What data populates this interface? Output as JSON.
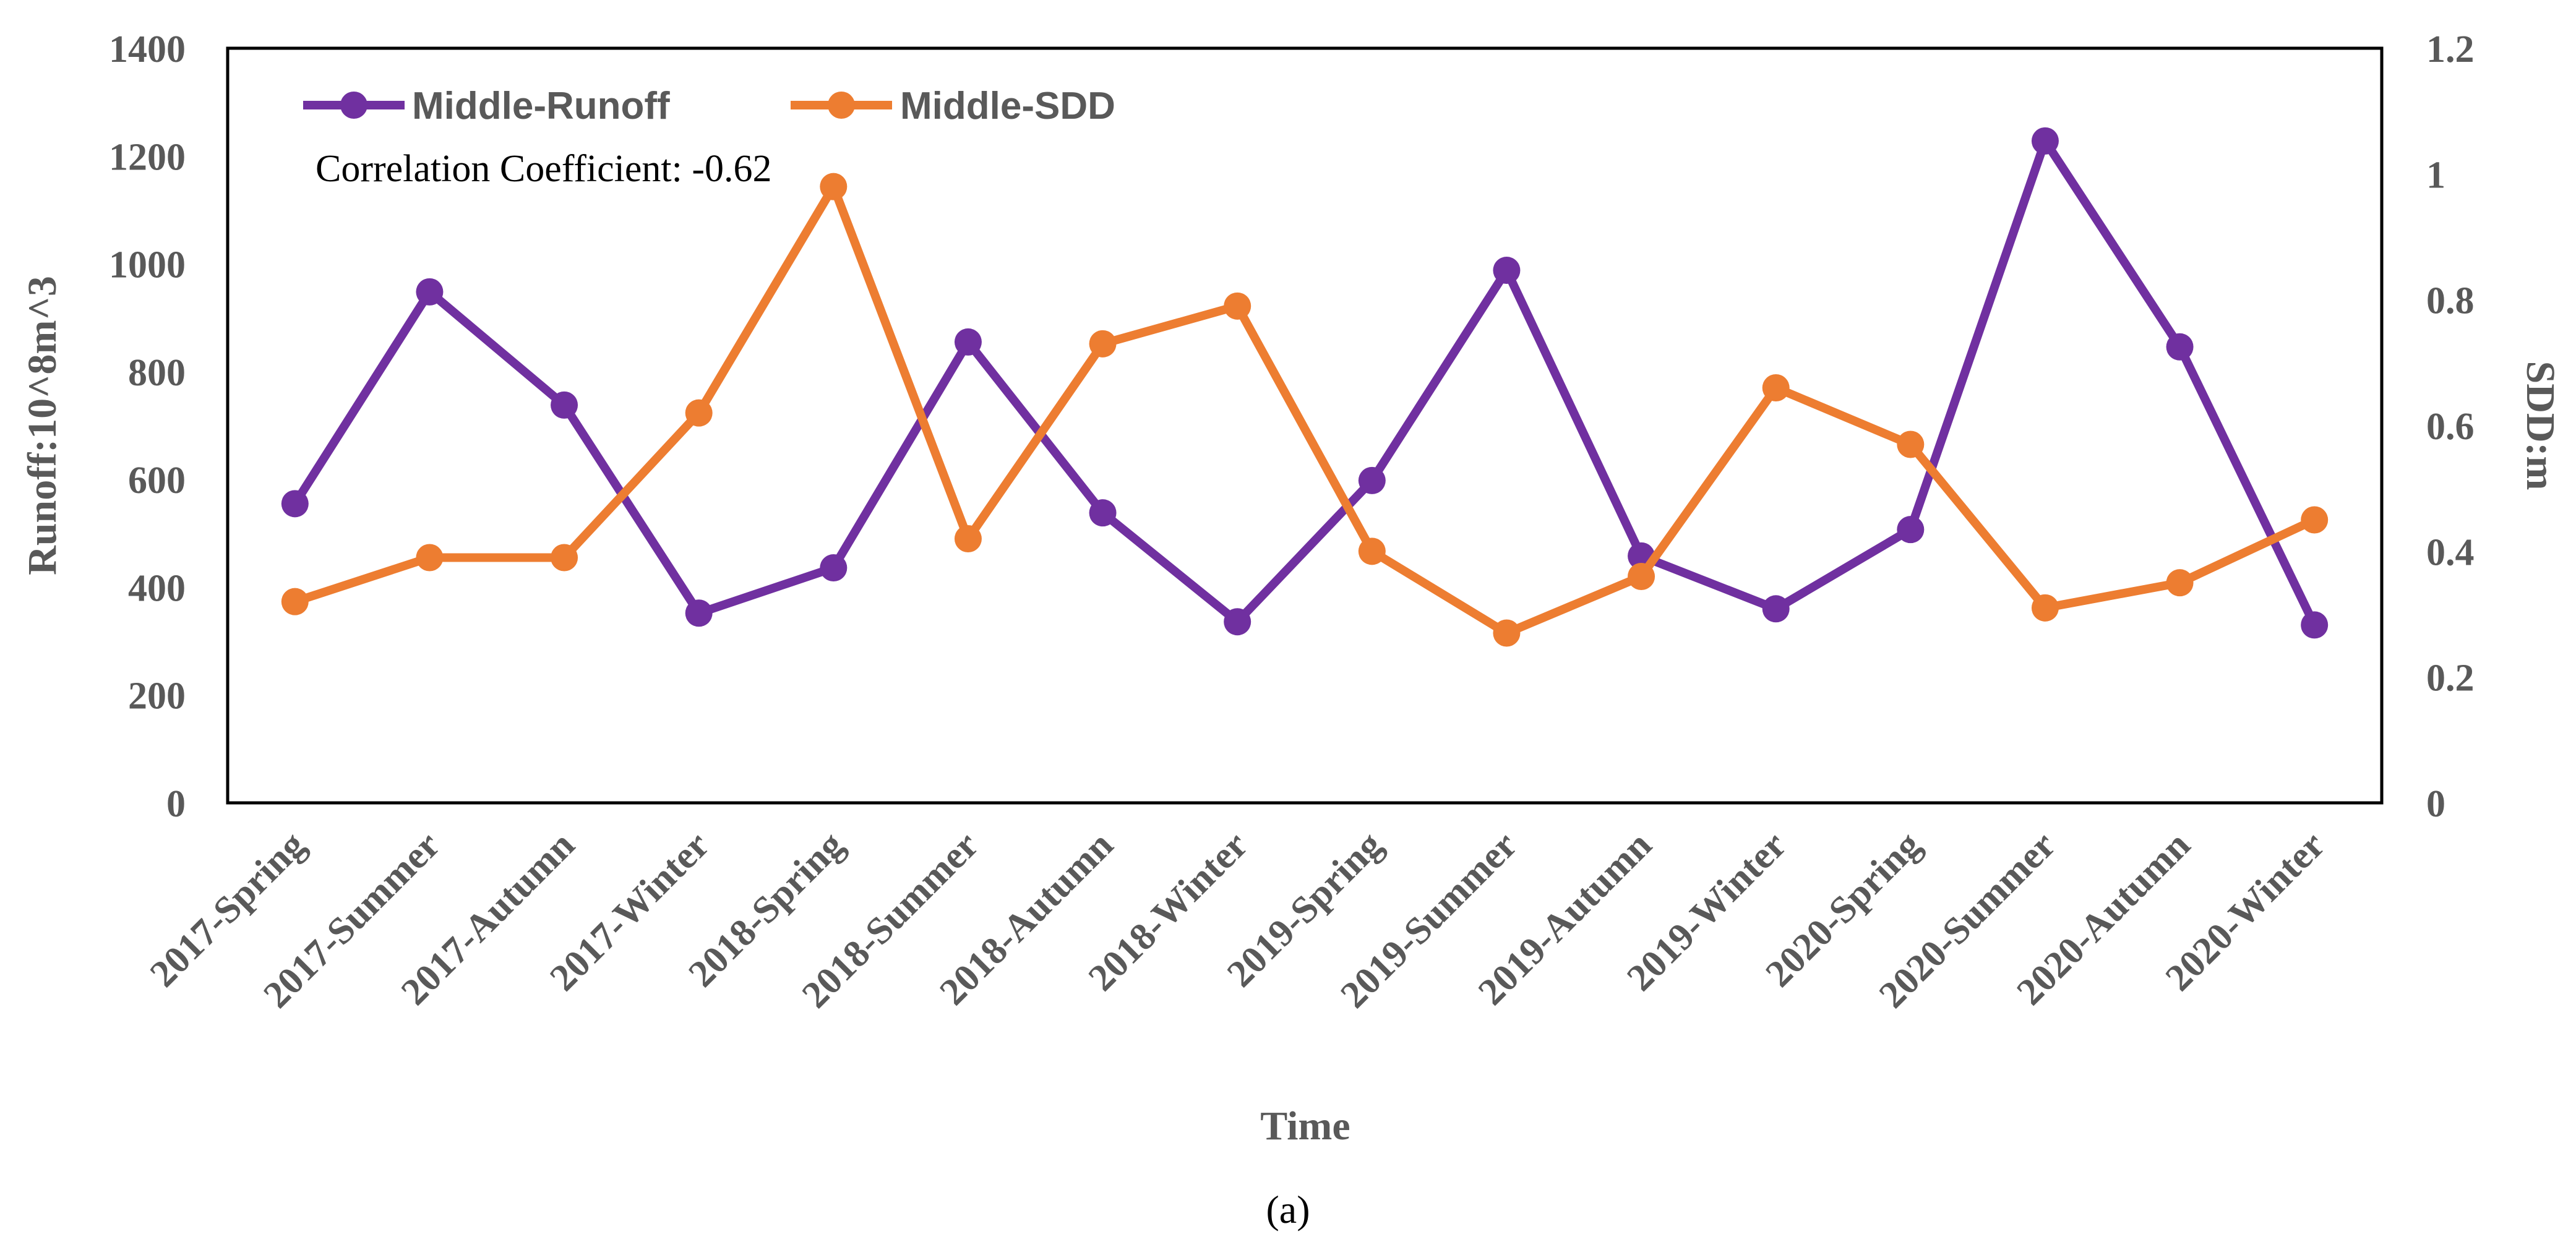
{
  "chart_data": {
    "type": "line",
    "categories": [
      "2017-Spring",
      "2017-Summer",
      "2017-Autumn",
      "2017-Winter",
      "2018-Spring",
      "2018-Summer",
      "2018-Autumn",
      "2018-Winter",
      "2019-Spring",
      "2019-Summer",
      "2019-Autumn",
      "2019-Winter",
      "2020-Spring",
      "2020-Summer",
      "2020-Autumn",
      "2020-Winter"
    ],
    "series": [
      {
        "name": "Middle-Runoff",
        "axis": "left",
        "color": "#7030A0",
        "values": [
          555,
          948,
          738,
          352,
          436,
          855,
          538,
          336,
          598,
          988,
          458,
          360,
          507,
          1228,
          846,
          330
        ]
      },
      {
        "name": "Middle-SDD",
        "axis": "right",
        "color": "#ED7D31",
        "values": [
          0.32,
          0.39,
          0.39,
          0.62,
          0.98,
          0.42,
          0.73,
          0.79,
          0.4,
          0.27,
          0.36,
          0.66,
          0.57,
          0.31,
          0.35,
          0.45
        ]
      }
    ],
    "ylim_left": [
      0,
      1400
    ],
    "ylim_right": [
      0,
      1.2
    ],
    "yticks_left": [
      "0",
      "200",
      "400",
      "600",
      "800",
      "1000",
      "1200",
      "1400"
    ],
    "yticks_right": [
      "0",
      "0.2",
      "0.4",
      "0.6",
      "0.8",
      "1",
      "1.2"
    ],
    "xlabel": "Time",
    "ylabel_left": "Runoff:10^8m^3",
    "ylabel_right": "SDD:m",
    "annotation": "Correlation Coefficient: -0.62",
    "legend_position": "top-left",
    "grid": false
  },
  "caption": "(a)"
}
